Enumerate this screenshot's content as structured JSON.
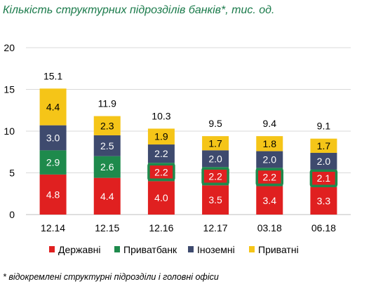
{
  "title": "Кількість структурних підрозділів банків*, тис. од.",
  "footnote": "* відокремлені структурні підрозділи і головні офіси",
  "chart_data": {
    "type": "bar",
    "stacked": true,
    "categories": [
      "12.14",
      "12.15",
      "12.16",
      "12.17",
      "03.18",
      "06.18"
    ],
    "ylim": [
      0,
      20
    ],
    "yticks": [
      0,
      5,
      10,
      15,
      20
    ],
    "grid": true,
    "legend_position": "bottom",
    "totals": [
      15.1,
      11.9,
      10.3,
      9.5,
      9.4,
      9.1
    ],
    "series": [
      {
        "name": "Державні",
        "color": "#e02020",
        "label_color": "#ffffff",
        "values": [
          4.8,
          4.4,
          4.0,
          3.5,
          3.4,
          3.3
        ]
      },
      {
        "name": "Приватбанк",
        "color": "#1e8a4c",
        "label_color": "#ffffff",
        "values": [
          2.9,
          2.6,
          2.2,
          2.2,
          2.2,
          2.1
        ],
        "highlighted_from_index": 2,
        "highlight_color": "#1e8a4c"
      },
      {
        "name": "Іноземні",
        "color": "#3e4a6e",
        "label_color": "#ffffff",
        "values": [
          3.0,
          2.5,
          2.2,
          2.0,
          2.0,
          2.0
        ]
      },
      {
        "name": "Приватні",
        "color": "#f5c518",
        "label_color": "#000000",
        "values": [
          4.4,
          2.3,
          1.9,
          1.7,
          1.8,
          1.7
        ]
      }
    ]
  }
}
